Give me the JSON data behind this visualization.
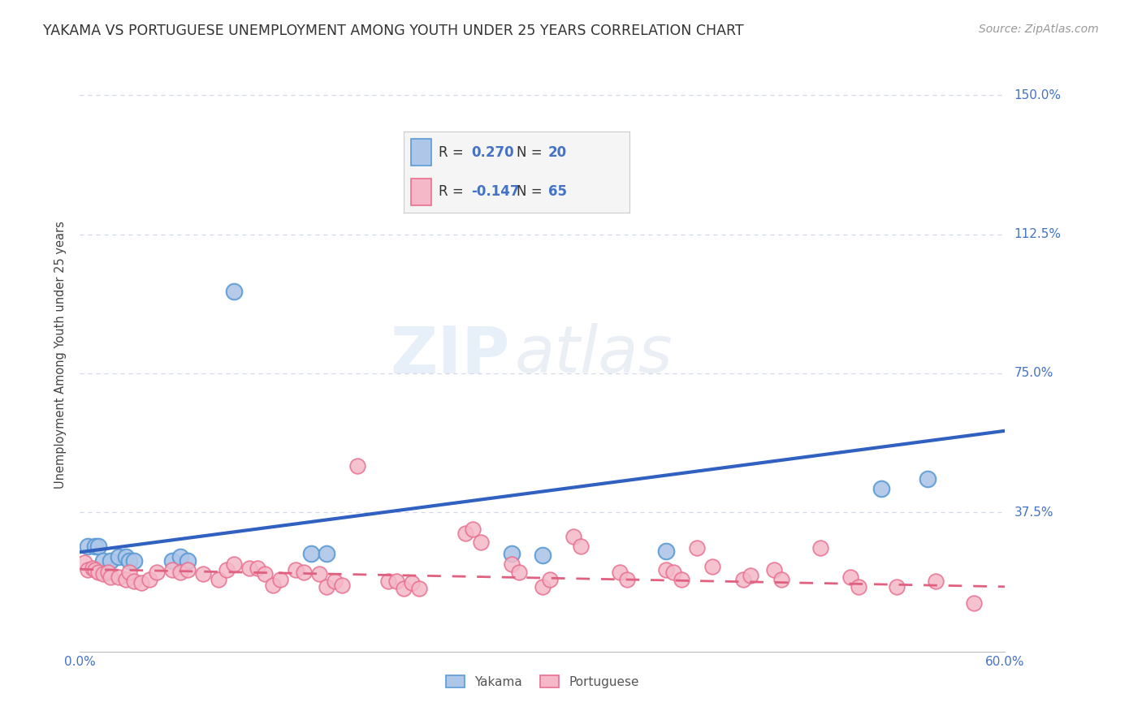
{
  "title": "YAKAMA VS PORTUGUESE UNEMPLOYMENT AMONG YOUTH UNDER 25 YEARS CORRELATION CHART",
  "source": "Source: ZipAtlas.com",
  "ylabel": "Unemployment Among Youth under 25 years",
  "xlim": [
    0.0,
    0.6
  ],
  "ylim": [
    0.0,
    1.6
  ],
  "xticks": [
    0.0,
    0.15,
    0.3,
    0.45,
    0.6
  ],
  "xtick_labels": [
    "0.0%",
    "",
    "",
    "",
    "60.0%"
  ],
  "yticks": [
    0.0,
    0.375,
    0.75,
    1.125,
    1.5
  ],
  "ytick_labels": [
    "",
    "37.5%",
    "75.0%",
    "112.5%",
    "150.0%"
  ],
  "yakama_color_face": "#aec6e8",
  "yakama_color_edge": "#5b9bd5",
  "portuguese_color_face": "#f4b8c8",
  "portuguese_color_edge": "#e87090",
  "yakama_line_color": "#3060c0",
  "portuguese_line_color": "#e06080",
  "tick_label_color": "#4472c4",
  "grid_color": "#d0d8e8",
  "background_color": "#ffffff",
  "watermark_zip": "ZIP",
  "watermark_atlas": "atlas",
  "yakama_points": [
    [
      0.005,
      0.285
    ],
    [
      0.01,
      0.285
    ],
    [
      0.012,
      0.285
    ],
    [
      0.015,
      0.245
    ],
    [
      0.02,
      0.245
    ],
    [
      0.025,
      0.255
    ],
    [
      0.03,
      0.255
    ],
    [
      0.032,
      0.245
    ],
    [
      0.035,
      0.245
    ],
    [
      0.06,
      0.245
    ],
    [
      0.065,
      0.255
    ],
    [
      0.07,
      0.245
    ],
    [
      0.15,
      0.265
    ],
    [
      0.16,
      0.265
    ],
    [
      0.28,
      0.265
    ],
    [
      0.3,
      0.26
    ],
    [
      0.38,
      0.27
    ],
    [
      0.1,
      0.97
    ],
    [
      0.52,
      0.44
    ],
    [
      0.55,
      0.465
    ]
  ],
  "portuguese_points": [
    [
      0.003,
      0.24
    ],
    [
      0.005,
      0.22
    ],
    [
      0.008,
      0.225
    ],
    [
      0.01,
      0.22
    ],
    [
      0.012,
      0.215
    ],
    [
      0.015,
      0.21
    ],
    [
      0.018,
      0.215
    ],
    [
      0.02,
      0.2
    ],
    [
      0.025,
      0.2
    ],
    [
      0.03,
      0.195
    ],
    [
      0.032,
      0.215
    ],
    [
      0.035,
      0.19
    ],
    [
      0.04,
      0.185
    ],
    [
      0.045,
      0.195
    ],
    [
      0.05,
      0.215
    ],
    [
      0.06,
      0.22
    ],
    [
      0.065,
      0.215
    ],
    [
      0.07,
      0.22
    ],
    [
      0.08,
      0.21
    ],
    [
      0.09,
      0.195
    ],
    [
      0.095,
      0.22
    ],
    [
      0.1,
      0.235
    ],
    [
      0.11,
      0.225
    ],
    [
      0.115,
      0.225
    ],
    [
      0.12,
      0.21
    ],
    [
      0.125,
      0.18
    ],
    [
      0.13,
      0.195
    ],
    [
      0.14,
      0.22
    ],
    [
      0.145,
      0.215
    ],
    [
      0.155,
      0.21
    ],
    [
      0.16,
      0.175
    ],
    [
      0.165,
      0.19
    ],
    [
      0.17,
      0.18
    ],
    [
      0.18,
      0.5
    ],
    [
      0.2,
      0.19
    ],
    [
      0.205,
      0.19
    ],
    [
      0.21,
      0.17
    ],
    [
      0.215,
      0.185
    ],
    [
      0.22,
      0.17
    ],
    [
      0.25,
      0.32
    ],
    [
      0.255,
      0.33
    ],
    [
      0.26,
      0.295
    ],
    [
      0.28,
      0.235
    ],
    [
      0.285,
      0.215
    ],
    [
      0.3,
      0.175
    ],
    [
      0.305,
      0.195
    ],
    [
      0.32,
      0.31
    ],
    [
      0.325,
      0.285
    ],
    [
      0.35,
      0.215
    ],
    [
      0.355,
      0.195
    ],
    [
      0.38,
      0.22
    ],
    [
      0.385,
      0.215
    ],
    [
      0.39,
      0.195
    ],
    [
      0.4,
      0.28
    ],
    [
      0.41,
      0.23
    ],
    [
      0.43,
      0.195
    ],
    [
      0.435,
      0.205
    ],
    [
      0.45,
      0.22
    ],
    [
      0.455,
      0.195
    ],
    [
      0.48,
      0.28
    ],
    [
      0.5,
      0.2
    ],
    [
      0.505,
      0.175
    ],
    [
      0.53,
      0.175
    ],
    [
      0.555,
      0.19
    ],
    [
      0.58,
      0.13
    ]
  ],
  "yakama_trend_x": [
    0.0,
    0.6
  ],
  "yakama_trend_y": [
    0.268,
    0.595
  ],
  "portuguese_trend_x": [
    0.0,
    0.6
  ],
  "portuguese_trend_y": [
    0.222,
    0.175
  ],
  "legend_r1": "R =  0.270",
  "legend_n1": "N = 20",
  "legend_r2": "R = -0.147",
  "legend_n2": "N = 65",
  "title_fontsize": 12.5,
  "source_fontsize": 10,
  "tick_fontsize": 11,
  "ylabel_fontsize": 10.5,
  "legend_fontsize": 12
}
